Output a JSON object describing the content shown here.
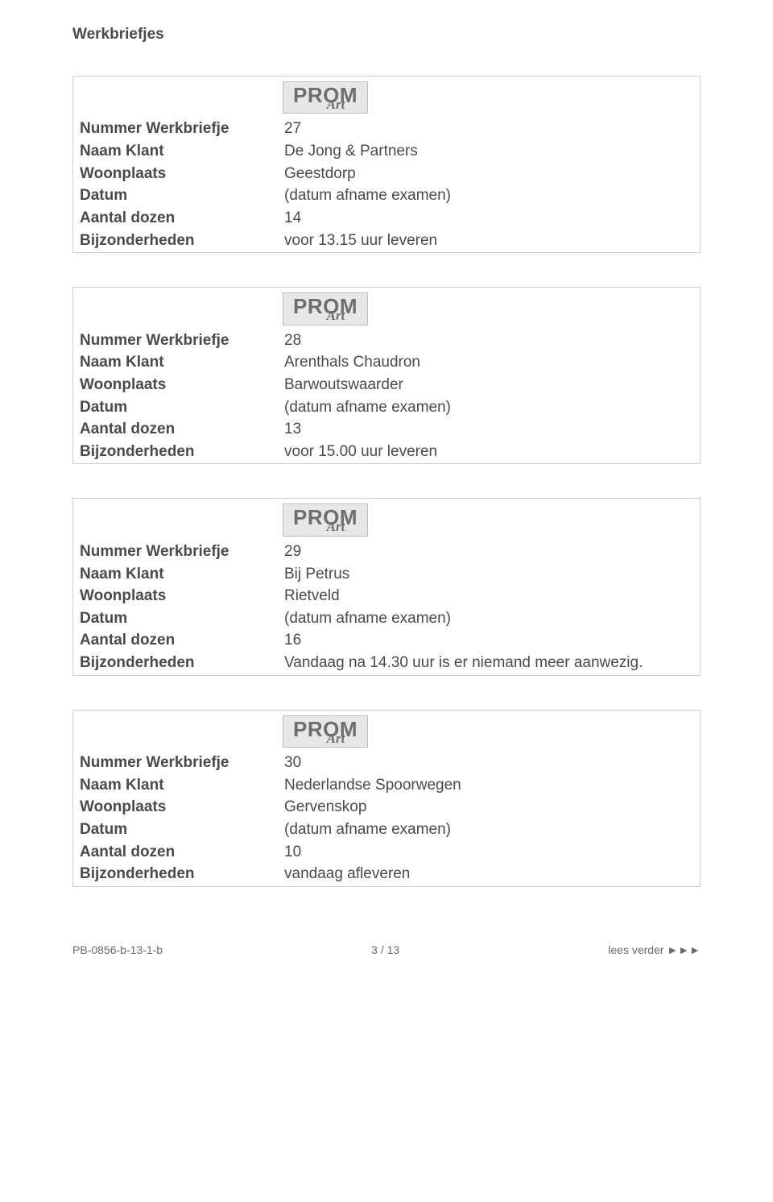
{
  "section_title": "Werkbriefjes",
  "logo": {
    "line1": "PROM",
    "line2": "Art"
  },
  "field_labels": {
    "nummer": "Nummer Werkbriefje",
    "naam": "Naam Klant",
    "woonplaats": "Woonplaats",
    "datum": "Datum",
    "aantal": "Aantal dozen",
    "bijz": "Bijzonderheden"
  },
  "cards": [
    {
      "nummer": "27",
      "naam": "De Jong & Partners",
      "woonplaats": "Geestdorp",
      "datum": "(datum afname examen)",
      "aantal": "14",
      "bijz": "voor 13.15 uur leveren"
    },
    {
      "nummer": "28",
      "naam": "Arenthals Chaudron",
      "woonplaats": "Barwoutswaarder",
      "datum": "(datum afname examen)",
      "aantal": "13",
      "bijz": "voor 15.00 uur leveren"
    },
    {
      "nummer": "29",
      "naam": "Bij Petrus",
      "woonplaats": "Rietveld",
      "datum": "(datum afname examen)",
      "aantal": "16",
      "bijz": "Vandaag na 14.30 uur is er niemand meer aanwezig."
    },
    {
      "nummer": "30",
      "naam": "Nederlandse Spoorwegen",
      "woonplaats": "Gervenskop",
      "datum": "(datum afname examen)",
      "aantal": "10",
      "bijz": "vandaag afleveren"
    }
  ],
  "footer": {
    "left": "PB-0856-b-13-1-b",
    "center": "3 / 13",
    "right": "lees verder ►►►"
  }
}
